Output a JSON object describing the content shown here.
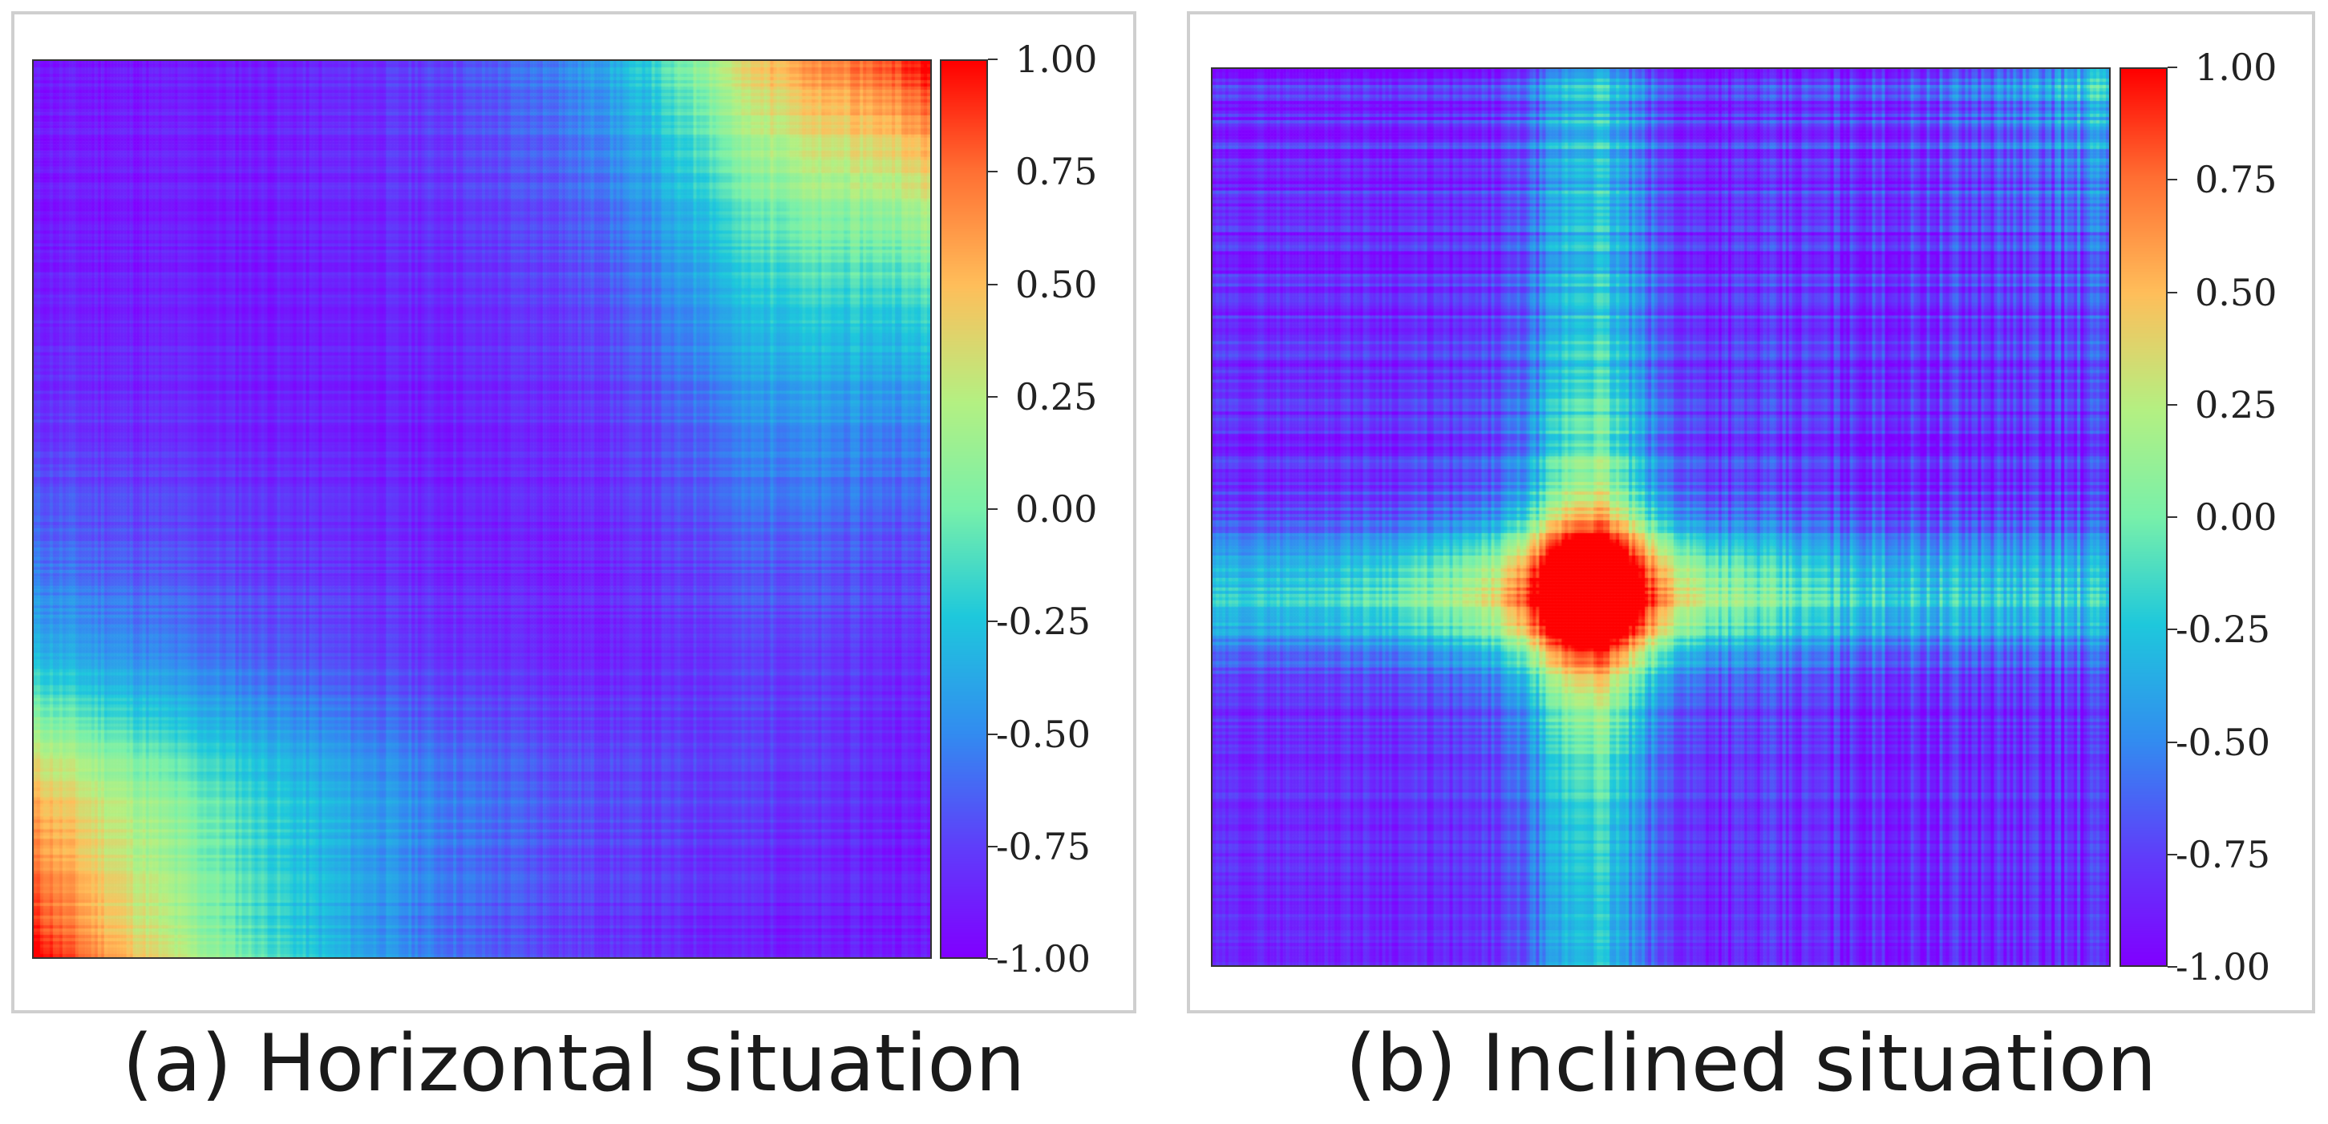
{
  "chart_data": [
    {
      "type": "heatmap",
      "caption": "(a) Horizontal situation",
      "colormap": "rainbow",
      "colorbar": {
        "min": -1.0,
        "max": 1.0,
        "ticks": [
          "1.00",
          "0.75",
          "0.50",
          "0.25",
          "0.00",
          "-0.25",
          "-0.50",
          "-0.75",
          "-1.00"
        ]
      },
      "pattern": "high correlation in top-right and bottom-left corners, low elsewhere"
    },
    {
      "type": "heatmap",
      "caption": "(b) Inclined situation",
      "colormap": "rainbow",
      "colorbar": {
        "min": -1.0,
        "max": 1.0,
        "ticks": [
          "1.00",
          "0.75",
          "0.50",
          "0.25",
          "0.00",
          "-0.25",
          "-0.50",
          "-0.75",
          "-1.00"
        ]
      },
      "pattern": "cross-shaped high correlation band centered at about 40% column and 58% row"
    }
  ]
}
